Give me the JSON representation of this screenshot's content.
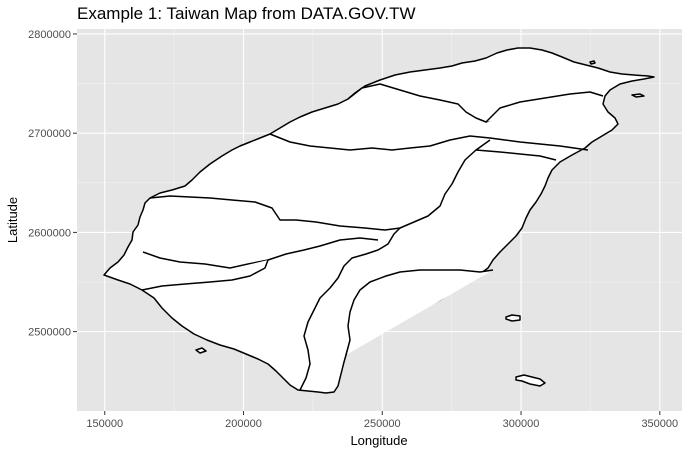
{
  "chart_data": {
    "type": "map",
    "title": "Example 1: Taiwan Map from DATA.GOV.TW",
    "xlabel": "Longitude",
    "ylabel": "Latitude",
    "xlim": [
      140000,
      358000
    ],
    "ylim": [
      2420000,
      2805000
    ],
    "x_ticks": [
      150000,
      200000,
      250000,
      300000,
      350000
    ],
    "y_ticks": [
      2500000,
      2600000,
      2700000,
      2800000
    ],
    "x_tick_labels": [
      "150000",
      "200000",
      "250000",
      "300000",
      "350000"
    ],
    "y_tick_labels": [
      "2500000",
      "2600000",
      "2700000",
      "2800000"
    ],
    "grid": true,
    "panel_color": "#e5e5e5",
    "fill_color": "#ffffff",
    "border_color": "#000000"
  }
}
